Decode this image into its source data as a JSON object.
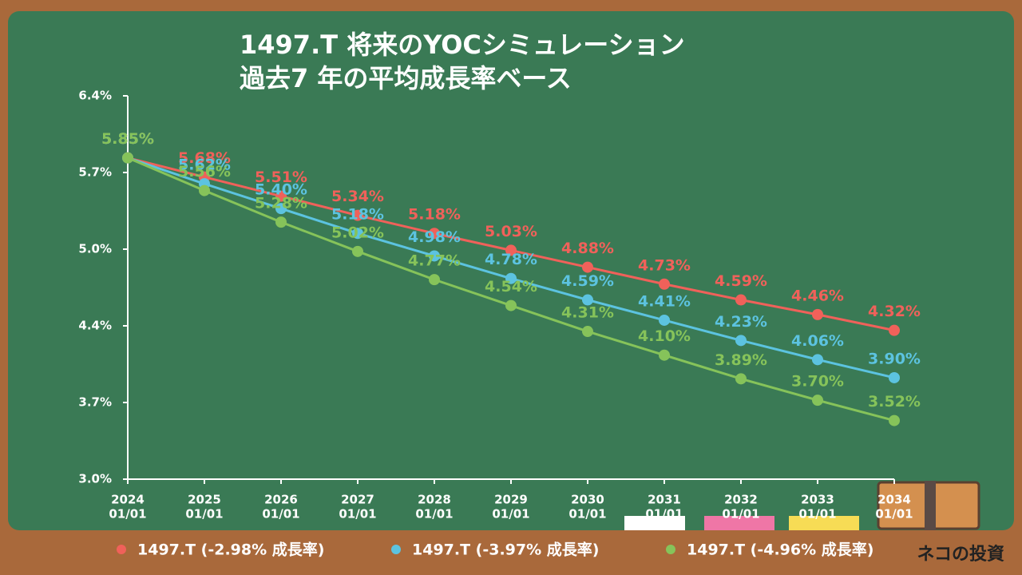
{
  "chart_data": {
    "type": "line",
    "title": "1497.T 将来のYOCシミュレーション",
    "subtitle": "過去7 年の平均成長率ベース",
    "categories": [
      [
        "2024",
        "01/01"
      ],
      [
        "2025",
        "01/01"
      ],
      [
        "2026",
        "01/01"
      ],
      [
        "2027",
        "01/01"
      ],
      [
        "2028",
        "01/01"
      ],
      [
        "2029",
        "01/01"
      ],
      [
        "2030",
        "01/01"
      ],
      [
        "2031",
        "01/01"
      ],
      [
        "2032",
        "01/01"
      ],
      [
        "2033",
        "01/01"
      ],
      [
        "2034",
        "01/01"
      ]
    ],
    "ylim": [
      3.0,
      6.4
    ],
    "yticks": [
      {
        "value": 3.0,
        "label": "3.0%"
      },
      {
        "value": 3.68,
        "label": "3.7%"
      },
      {
        "value": 4.36,
        "label": "4.4%"
      },
      {
        "value": 5.04,
        "label": "5.0%"
      },
      {
        "value": 5.72,
        "label": "5.7%"
      },
      {
        "value": 6.4,
        "label": "6.4%"
      }
    ],
    "legend": "bottom",
    "series": [
      {
        "name": "1497.T (-2.98% 成長率)",
        "color": "#f0615a",
        "values": [
          5.85,
          5.68,
          5.51,
          5.34,
          5.18,
          5.03,
          4.88,
          4.73,
          4.59,
          4.46,
          4.32
        ],
        "value_labels": [
          "5.85%",
          "5.68%",
          "5.51%",
          "5.34%",
          "5.18%",
          "5.03%",
          "4.88%",
          "4.73%",
          "4.59%",
          "4.46%",
          "4.32%"
        ]
      },
      {
        "name": "1497.T (-3.97% 成長率)",
        "color": "#5cc3e0",
        "values": [
          5.85,
          5.62,
          5.4,
          5.18,
          4.98,
          4.78,
          4.59,
          4.41,
          4.23,
          4.06,
          3.9
        ],
        "value_labels": [
          "5.85%",
          "5.62%",
          "5.40%",
          "5.18%",
          "4.98%",
          "4.78%",
          "4.59%",
          "4.41%",
          "4.23%",
          "4.06%",
          "3.90%"
        ]
      },
      {
        "name": "1497.T (-4.96% 成長率)",
        "color": "#86c35a",
        "values": [
          5.85,
          5.56,
          5.28,
          5.02,
          4.77,
          4.54,
          4.31,
          4.1,
          3.89,
          3.7,
          3.52
        ],
        "value_labels": [
          "5.85%",
          "5.56%",
          "5.28%",
          "5.02%",
          "4.77%",
          "4.54%",
          "4.31%",
          "4.10%",
          "3.89%",
          "3.70%",
          "3.52%"
        ]
      }
    ]
  },
  "logo": "ネコの投資"
}
